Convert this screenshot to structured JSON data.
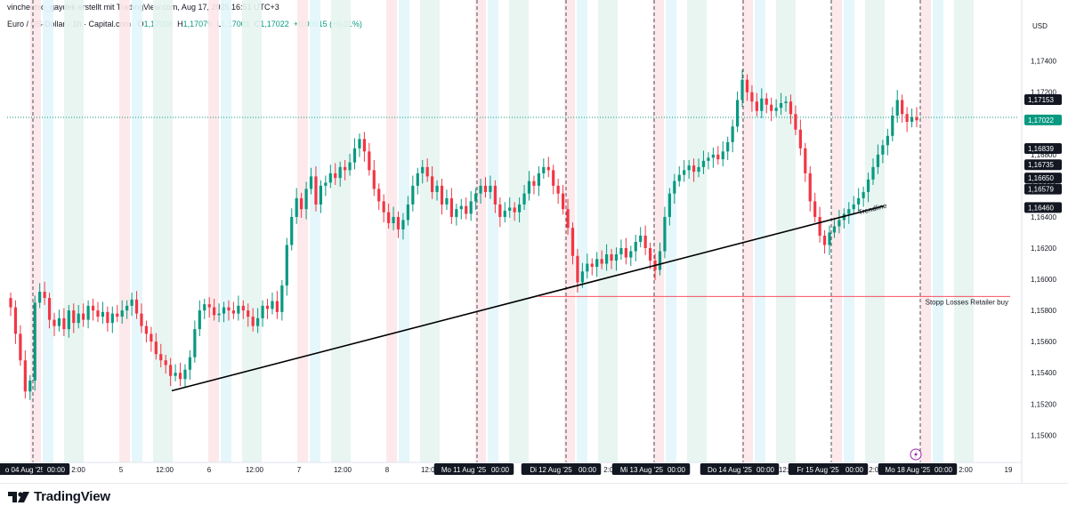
{
  "header": {
    "author_line": "vinchentso_gaydek erstellt mit TradingView.com, Aug 17, 2025 16:51 UTC+3",
    "symbol": "Euro / US-Dollar · 1h · Capital.com",
    "ohlc": {
      "O": "1,17008",
      "H": "1,17079",
      "L": "1,17001",
      "C": "1,17022",
      "change": "+0,00015 (+0,01%)"
    }
  },
  "footer": {
    "brand": "TradingView"
  },
  "colors": {
    "up": "#089981",
    "down": "#f23645",
    "trendline": "#000000",
    "hline": "#f7525f"
  },
  "chart_data": {
    "type": "candlestick",
    "title": "Euro / US-Dollar · 1h · Capital.com",
    "currency": "USD",
    "y_ticks": [
      "1,17400",
      "1,17200",
      "1,16800",
      "1,16600",
      "1,16400",
      "1,16200",
      "1,16000",
      "1,15800",
      "1,15600",
      "1,15400",
      "1,15200",
      "1,15000"
    ],
    "y_tick_values": [
      1.174,
      1.172,
      1.168,
      1.166,
      1.164,
      1.162,
      1.16,
      1.158,
      1.156,
      1.154,
      1.152,
      1.15
    ],
    "ylim": [
      1.14825,
      1.17575
    ],
    "x_ticks": [
      {
        "label": "o 04 Aug '25",
        "boxed": true
      },
      {
        "label": "00:00",
        "boxed": true
      },
      {
        "label": "2:00",
        "boxed": false
      },
      {
        "label": "5",
        "boxed": false
      },
      {
        "label": "12:00",
        "boxed": false
      },
      {
        "label": "6",
        "boxed": false
      },
      {
        "label": "12:00",
        "boxed": false
      },
      {
        "label": "7",
        "boxed": false
      },
      {
        "label": "12:00",
        "boxed": false
      },
      {
        "label": "8",
        "boxed": false
      },
      {
        "label": "12:00",
        "boxed": false
      },
      {
        "label": "Mo 11 Aug '25",
        "boxed": true
      },
      {
        "label": "00:00",
        "boxed": true
      },
      {
        "label": "Di 12 Aug '25",
        "boxed": true
      },
      {
        "label": "00:00",
        "boxed": true
      },
      {
        "label": "2:00",
        "boxed": false
      },
      {
        "label": "Mi 13 Aug '25",
        "boxed": true
      },
      {
        "label": "00:00",
        "boxed": true
      },
      {
        "label": "Do 14 Aug '25",
        "boxed": true
      },
      {
        "label": "00:00",
        "boxed": true
      },
      {
        "label": "12:00",
        "boxed": false
      },
      {
        "label": "Fr 15 Aug '25",
        "boxed": true
      },
      {
        "label": "00:00",
        "boxed": true
      },
      {
        "label": "2:00",
        "boxed": false
      },
      {
        "label": "Mo 18 Aug '25",
        "boxed": true
      },
      {
        "label": "00:00",
        "boxed": true
      },
      {
        "label": "2:00",
        "boxed": false
      },
      {
        "label": "19",
        "boxed": false
      }
    ],
    "price_labels": [
      {
        "value": 1.17153,
        "text": "1,17153",
        "style": "dark"
      },
      {
        "value": 1.17022,
        "text": "1,17022",
        "style": "current"
      },
      {
        "value": 1.16839,
        "text": "1,16839",
        "style": "dark"
      },
      {
        "value": 1.16735,
        "text": "1,16735",
        "style": "dark"
      },
      {
        "value": 1.1665,
        "text": "1,16650",
        "style": "dark"
      },
      {
        "value": 1.16579,
        "text": "1,16579",
        "style": "dark"
      },
      {
        "value": 1.1646,
        "text": "1,16460",
        "style": "dark"
      }
    ],
    "trendline": {
      "label": "Trendline",
      "start": 1.15285,
      "end": 1.1647
    },
    "horizontal_line": {
      "label": "Stopp Losses Retailer buy",
      "value": 1.1589
    },
    "close": [
      1.1582,
      1.1565,
      1.1548,
      1.1528,
      1.1535,
      1.1585,
      1.1592,
      1.1588,
      1.1574,
      1.157,
      1.1575,
      1.1568,
      1.158,
      1.1572,
      1.1578,
      1.1574,
      1.1583,
      1.158,
      1.1576,
      1.1579,
      1.1572,
      1.1578,
      1.1576,
      1.158,
      1.1583,
      1.1587,
      1.1578,
      1.157,
      1.1565,
      1.156,
      1.1552,
      1.1548,
      1.1545,
      1.1538,
      1.154,
      1.1536,
      1.1542,
      1.155,
      1.1568,
      1.158,
      1.1584,
      1.1582,
      1.1577,
      1.1578,
      1.1582,
      1.158,
      1.1578,
      1.1583,
      1.158,
      1.1576,
      1.157,
      1.1575,
      1.1583,
      1.1581,
      1.1586,
      1.1579,
      1.1596,
      1.1622,
      1.164,
      1.1652,
      1.1645,
      1.1658,
      1.1666,
      1.1648,
      1.166,
      1.1662,
      1.1668,
      1.1665,
      1.1672,
      1.167,
      1.1675,
      1.1684,
      1.169,
      1.1682,
      1.167,
      1.1658,
      1.165,
      1.1643,
      1.1636,
      1.164,
      1.1632,
      1.1638,
      1.1648,
      1.166,
      1.1668,
      1.1672,
      1.1666,
      1.1656,
      1.166,
      1.1648,
      1.1652,
      1.164,
      1.1645,
      1.1647,
      1.1642,
      1.165,
      1.1655,
      1.166,
      1.1656,
      1.166,
      1.1648,
      1.164,
      1.1644,
      1.1646,
      1.1643,
      1.1648,
      1.1655,
      1.1663,
      1.166,
      1.1668,
      1.1672,
      1.167,
      1.166,
      1.1655,
      1.1645,
      1.1633,
      1.1615,
      1.1598,
      1.1605,
      1.161,
      1.1608,
      1.1613,
      1.161,
      1.1616,
      1.1612,
      1.1616,
      1.162,
      1.1614,
      1.1618,
      1.1624,
      1.1628,
      1.162,
      1.1612,
      1.1606,
      1.1618,
      1.164,
      1.1655,
      1.1663,
      1.1667,
      1.167,
      1.1673,
      1.1669,
      1.1672,
      1.1676,
      1.1678,
      1.168,
      1.1677,
      1.1682,
      1.1688,
      1.1698,
      1.1715,
      1.1728,
      1.172,
      1.1714,
      1.1708,
      1.1716,
      1.1712,
      1.1708,
      1.171,
      1.1713,
      1.1714,
      1.1706,
      1.1696,
      1.1684,
      1.1668,
      1.165,
      1.164,
      1.1628,
      1.1622,
      1.163,
      1.1634,
      1.1638,
      1.1642,
      1.1645,
      1.1648,
      1.1652,
      1.1656,
      1.1664,
      1.1672,
      1.168,
      1.1686,
      1.1692,
      1.1705,
      1.1715,
      1.1706,
      1.1701,
      1.1704,
      1.1702
    ]
  }
}
